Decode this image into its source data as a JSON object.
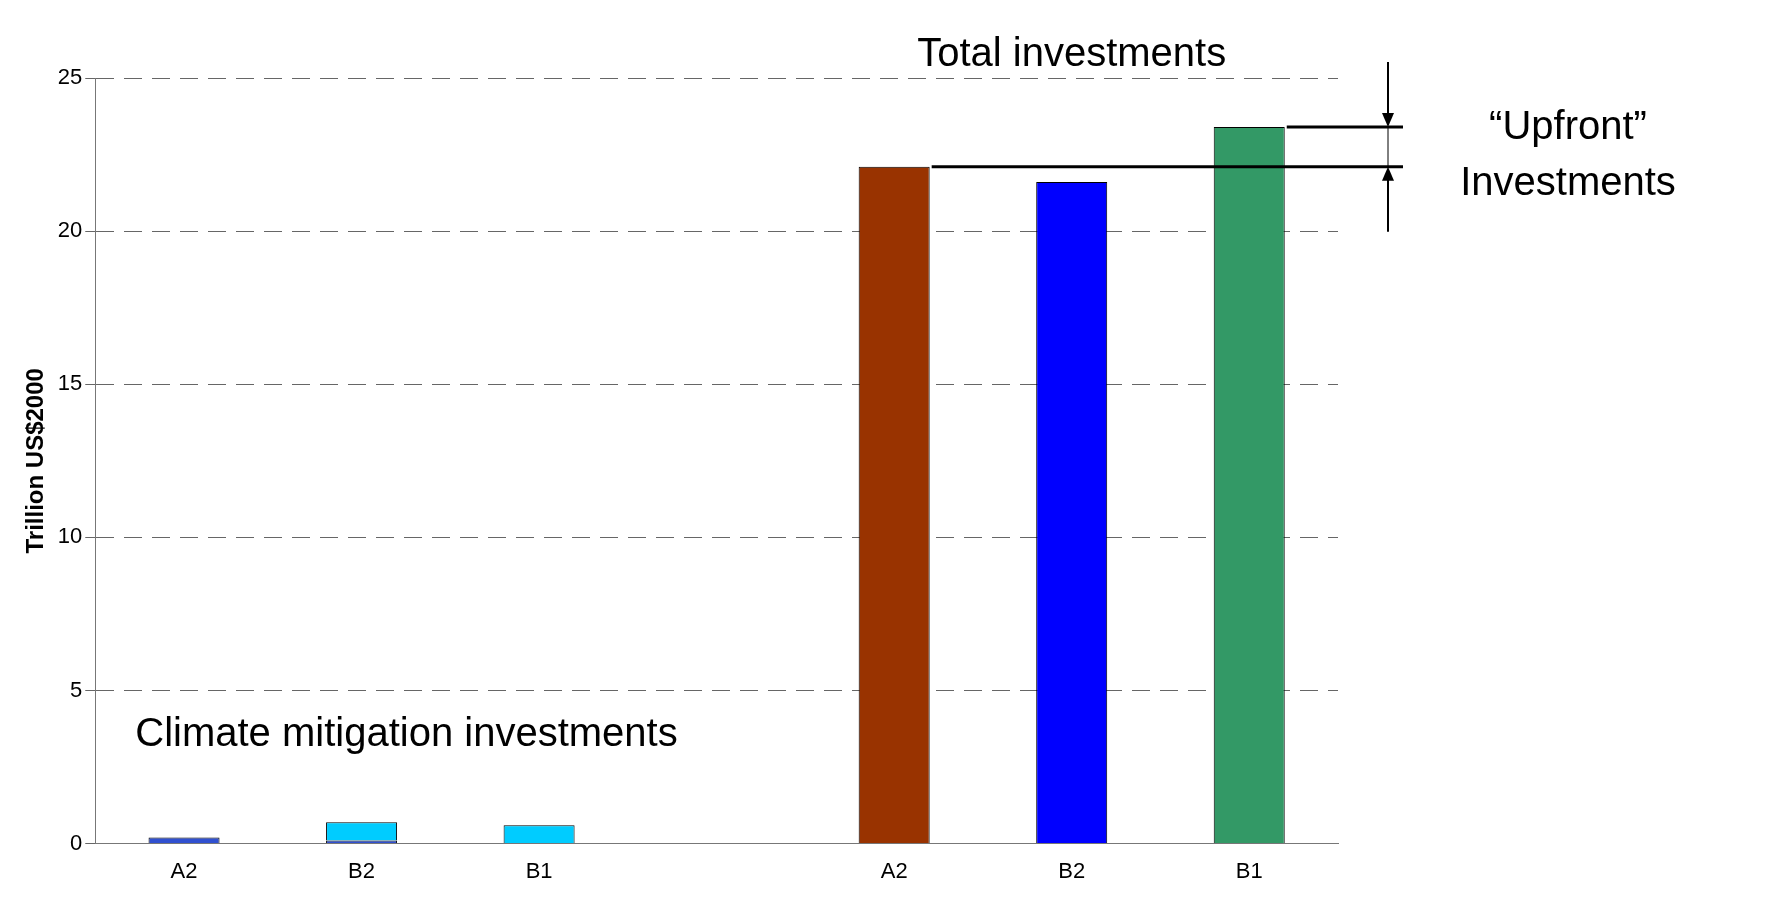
{
  "chart_data": {
    "type": "bar",
    "ylabel": "Trillion US$2000",
    "categories": [
      "A2",
      "B2",
      "B1",
      null,
      "A2",
      "B2",
      "B1"
    ],
    "stacked": true,
    "series": [
      {
        "color": "#3050d0",
        "colors": [
          "#3050d0",
          "#3050d0",
          null,
          null,
          "#993300",
          "#0000ff",
          "#339966"
        ],
        "values": [
          0.2,
          0.1,
          null,
          null,
          22.1,
          21.6,
          23.4
        ]
      },
      {
        "color": "#00ccff",
        "values": [
          null,
          0.6,
          0.6,
          null,
          null,
          null,
          null
        ]
      }
    ],
    "ref_lines": [
      {
        "axis": "y",
        "value": 22.1
      }
    ],
    "ylim": [
      0,
      25
    ],
    "yticks": [
      0,
      5,
      10,
      15,
      20,
      25
    ],
    "grid": "y",
    "line_style": "dashed",
    "legend": false,
    "annotations": [
      "Total investments",
      "“Upfront” Investments",
      "Climate mitigation investments"
    ]
  }
}
